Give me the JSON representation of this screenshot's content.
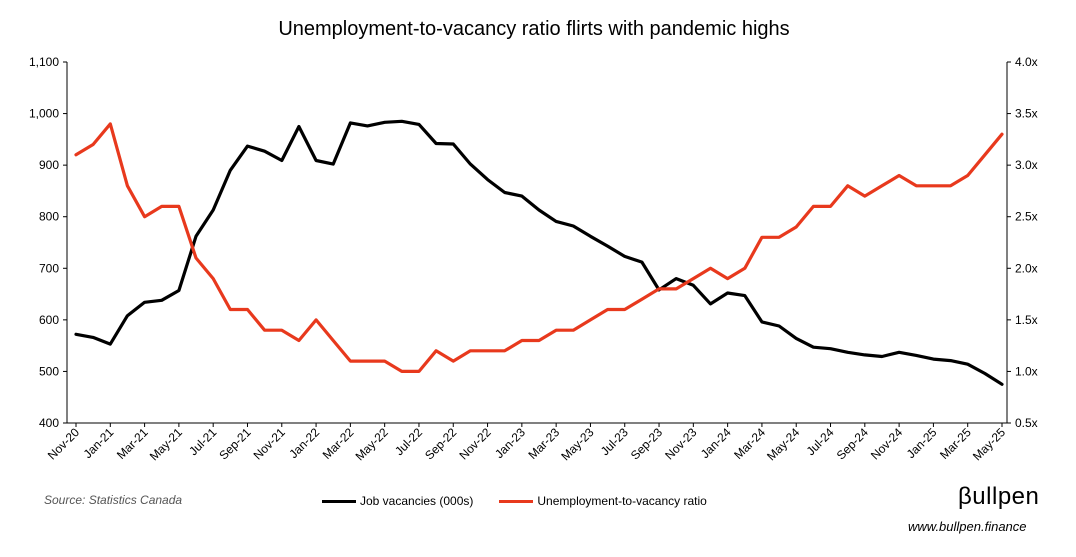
{
  "brand": {
    "logo": "βullpen",
    "url": "www.bullpen.finance"
  },
  "source": "Source: Statistics Canada",
  "chart_data": {
    "type": "line",
    "title": "Unemployment-to-vacancy ratio flirts with pandemic highs",
    "x": [
      "Nov-20",
      "Dec-20",
      "Jan-21",
      "Feb-21",
      "Mar-21",
      "Apr-21",
      "May-21",
      "Jun-21",
      "Jul-21",
      "Aug-21",
      "Sep-21",
      "Oct-21",
      "Nov-21",
      "Dec-21",
      "Jan-22",
      "Feb-22",
      "Mar-22",
      "Apr-22",
      "May-22",
      "Jun-22",
      "Jul-22",
      "Aug-22",
      "Sep-22",
      "Oct-22",
      "Nov-22",
      "Dec-22",
      "Jan-23",
      "Feb-23",
      "Mar-23",
      "Apr-23",
      "May-23",
      "Jun-23",
      "Jul-23",
      "Aug-23",
      "Sep-23",
      "Oct-23",
      "Nov-23",
      "Dec-23",
      "Jan-24",
      "Feb-24",
      "Mar-24",
      "Apr-24",
      "May-24",
      "Jun-24",
      "Jul-24",
      "Aug-24",
      "Sep-24",
      "Oct-24",
      "Nov-24",
      "Dec-24",
      "Jan-25",
      "Feb-25",
      "Mar-25",
      "Apr-25",
      "May-25"
    ],
    "xticks": [
      "Nov-20",
      "Jan-21",
      "Mar-21",
      "May-21",
      "Jul-21",
      "Sep-21",
      "Nov-21",
      "Jan-22",
      "Mar-22",
      "May-22",
      "Jul-22",
      "Sep-22",
      "Nov-22",
      "Jan-23",
      "Mar-23",
      "May-23",
      "Jul-23",
      "Sep-23",
      "Nov-23",
      "Jan-24",
      "Mar-24",
      "May-24",
      "Jul-24",
      "Sep-24",
      "Nov-24",
      "Jan-25",
      "Mar-25",
      "May-25"
    ],
    "y_left": {
      "min": 400,
      "max": 1100,
      "step": 100,
      "ticks": [
        "400",
        "500",
        "600",
        "700",
        "800",
        "900",
        "1,000",
        "1,100"
      ]
    },
    "y_right": {
      "min": 0.5,
      "max": 4.0,
      "step": 0.5,
      "ticks": [
        "0.5x",
        "1.0x",
        "1.5x",
        "2.0x",
        "2.5x",
        "3.0x",
        "3.5x",
        "4.0x"
      ]
    },
    "grid": false,
    "legend_position": "bottom",
    "series": [
      {
        "name": "Job vacancies (000s)",
        "axis": "left",
        "color": "#000000",
        "values": [
          572,
          566,
          553,
          608,
          634,
          638,
          657,
          762,
          813,
          890,
          937,
          927,
          909,
          975,
          909,
          902,
          982,
          976,
          983,
          985,
          979,
          942,
          941,
          902,
          872,
          847,
          840,
          813,
          791,
          782,
          762,
          743,
          723,
          712,
          658,
          680,
          667,
          631,
          652,
          647,
          596,
          588,
          564,
          547,
          544,
          537,
          532,
          529,
          537,
          531,
          524,
          521,
          514,
          496,
          475
        ]
      },
      {
        "name": "Unemployment-to-vacancy ratio",
        "axis": "right",
        "color": "#e8391d",
        "values": [
          3.1,
          3.2,
          3.4,
          2.8,
          2.5,
          2.6,
          2.6,
          2.1,
          1.9,
          1.6,
          1.6,
          1.4,
          1.4,
          1.3,
          1.5,
          1.3,
          1.1,
          1.1,
          1.1,
          1.0,
          1.0,
          1.2,
          1.1,
          1.2,
          1.2,
          1.2,
          1.3,
          1.3,
          1.4,
          1.4,
          1.5,
          1.6,
          1.6,
          1.7,
          1.8,
          1.8,
          1.9,
          2.0,
          1.9,
          2.0,
          2.3,
          2.3,
          2.4,
          2.6,
          2.6,
          2.8,
          2.7,
          2.8,
          2.9,
          2.8,
          2.8,
          2.8,
          2.9,
          3.1,
          3.3
        ]
      }
    ]
  }
}
